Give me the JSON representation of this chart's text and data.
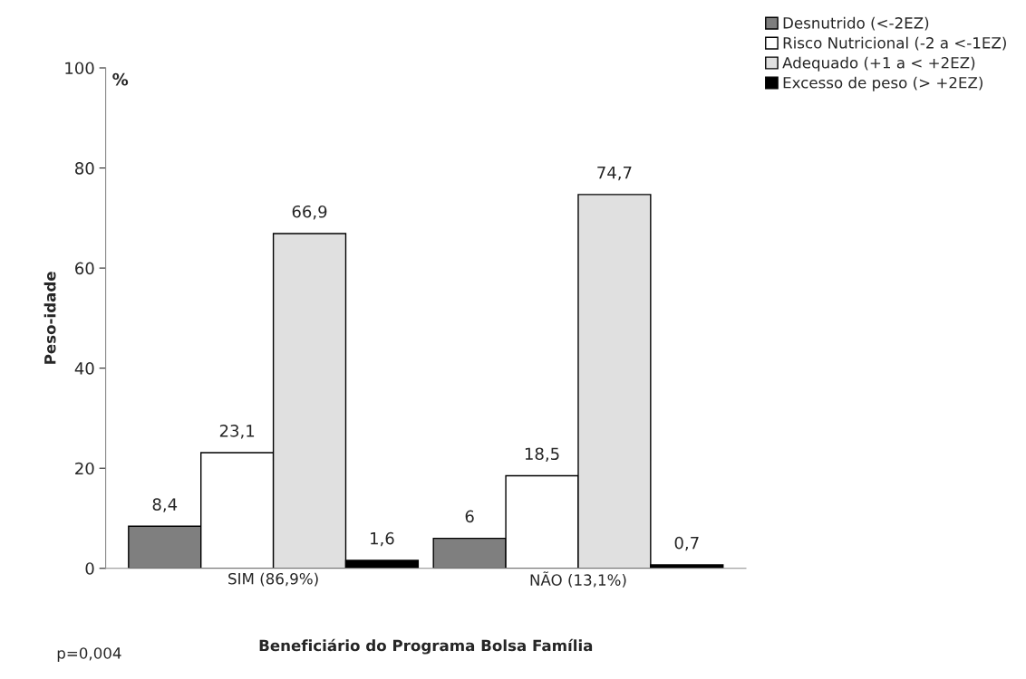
{
  "chart_data": {
    "type": "bar",
    "xlabel": "Beneficiário do Programa Bolsa Família",
    "ylabel": "Peso-idade",
    "categories": [
      "SIM (86,9%)",
      "NÃO (13,1%)"
    ],
    "series": [
      {
        "name": "Desnutrido (<-2EZ)",
        "color": "#7f7f7f",
        "values": [
          8.4,
          6
        ],
        "value_labels": [
          "8,4",
          "6"
        ]
      },
      {
        "name": "Risco Nutricional (-2 a <-1EZ)",
        "color": "#ffffff",
        "values": [
          23.1,
          18.5
        ],
        "value_labels": [
          "23,1",
          "18,5"
        ]
      },
      {
        "name": "Adequado (+1 a < +2EZ)",
        "color": "#e0e0e0",
        "values": [
          66.9,
          74.7
        ],
        "value_labels": [
          "66,9",
          "74,7"
        ]
      },
      {
        "name": "Excesso de peso (> +2EZ)",
        "color": "#000000",
        "values": [
          1.6,
          0.7
        ],
        "value_labels": [
          "1,6",
          "0,7"
        ]
      }
    ],
    "ylim": [
      0,
      100
    ],
    "yticks": [
      0,
      20,
      40,
      60,
      80,
      100
    ],
    "grid": false,
    "legend": "top right",
    "annotations": [
      "%",
      "p=0,004"
    ]
  }
}
